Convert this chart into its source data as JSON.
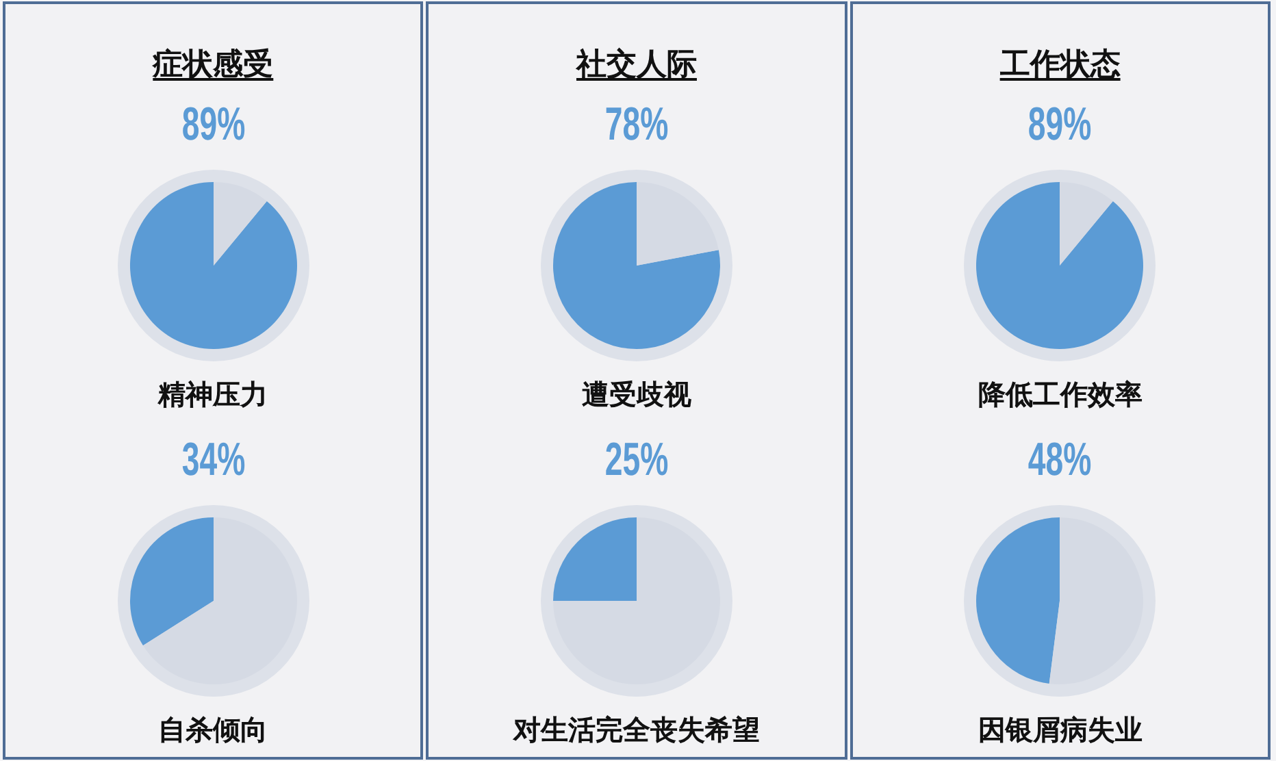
{
  "chart_data": [
    {
      "type": "pie",
      "title": "症状感受",
      "xlabel": "精神压力",
      "categories": [
        null,
        null
      ],
      "values": [
        89,
        11
      ],
      "colors": [
        "#5b9bd5",
        "#d5dae4"
      ],
      "value_labels": [
        "89%",
        null
      ]
    },
    {
      "type": "pie",
      "xlabel": "自杀倾向",
      "categories": [
        null,
        null
      ],
      "values": [
        34,
        66
      ],
      "colors": [
        "#5b9bd5",
        "#d5dae4"
      ],
      "value_labels": [
        "34%",
        null
      ]
    },
    {
      "type": "pie",
      "title": "社交人际",
      "xlabel": "遭受歧视",
      "categories": [
        null,
        null
      ],
      "values": [
        78,
        22
      ],
      "colors": [
        "#5b9bd5",
        "#d5dae4"
      ],
      "value_labels": [
        "78%",
        null
      ]
    },
    {
      "type": "pie",
      "xlabel": "对生活完全丧失希望",
      "categories": [
        null,
        null
      ],
      "values": [
        25,
        75
      ],
      "colors": [
        "#5b9bd5",
        "#d5dae4"
      ],
      "value_labels": [
        "25%",
        null
      ]
    },
    {
      "type": "pie",
      "title": "工作状态",
      "xlabel": "降低工作效率",
      "categories": [
        null,
        null
      ],
      "values": [
        89,
        11
      ],
      "colors": [
        "#5b9bd5",
        "#d5dae4"
      ],
      "value_labels": [
        "89%",
        null
      ]
    },
    {
      "type": "pie",
      "xlabel": "因银屑病失业",
      "categories": [
        null,
        null
      ],
      "values": [
        48,
        52
      ],
      "colors": [
        "#5b9bd5",
        "#d5dae4"
      ],
      "value_labels": [
        "48%",
        null
      ]
    }
  ]
}
